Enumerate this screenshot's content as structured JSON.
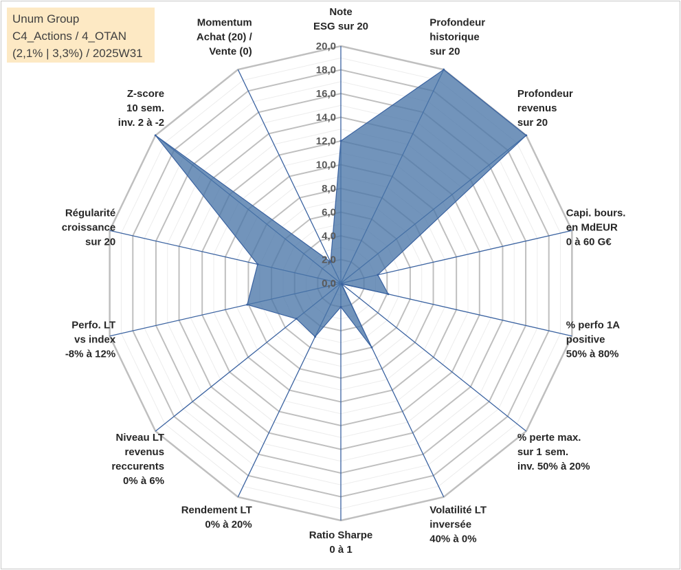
{
  "info": {
    "line1": "Unum Group",
    "line2": "C4_Actions / 4_OTAN",
    "line3": "(2,1% | 3,3%) / 2025W31"
  },
  "chart_data": {
    "type": "radar",
    "rmin": 0,
    "rmax": 20,
    "ticks": [
      "0,0",
      "2,0",
      "4,0",
      "6,0",
      "8,0",
      "10,0",
      "12,0",
      "14,0",
      "16,0",
      "18,0",
      "20,0"
    ],
    "colors": {
      "fill": "#4a76a8",
      "stroke": "#3a62a0",
      "grid": "#bfbfbf",
      "axis": "#3a62a0"
    },
    "axes": [
      {
        "label": [
          "Note",
          "ESG sur 20"
        ],
        "value": 12.0
      },
      {
        "label": [
          "Profondeur",
          "historique",
          "sur 20"
        ],
        "value": 20.0
      },
      {
        "label": [
          "Profondeur",
          "revenus",
          "sur 20"
        ],
        "value": 20.0
      },
      {
        "label": [
          "Capi. bours.",
          "en MdEUR",
          "0 à 60 G€"
        ],
        "value": 3.2
      },
      {
        "label": [
          "% perfo 1A",
          "positive",
          "50% à 80%"
        ],
        "value": 4.1
      },
      {
        "label": [
          "% perte max.",
          "sur 1 sem.",
          "inv. 50% à 20%"
        ],
        "value": 0.1
      },
      {
        "label": [
          "Volatilité LT",
          "inversée",
          "40% à 0%"
        ],
        "value": 6.0
      },
      {
        "label": [
          "Ratio Sharpe",
          "0 à 1"
        ],
        "value": 2.0
      },
      {
        "label": [
          "Rendement LT",
          "0% à 20%"
        ],
        "value": 5.0
      },
      {
        "label": [
          "Niveau LT",
          "revenus",
          "reccurents",
          "0% à 6%"
        ],
        "value": 4.8
      },
      {
        "label": [
          "Perfo. LT",
          "vs index",
          "-8% à 12%"
        ],
        "value": 8.1
      },
      {
        "label": [
          "Régularité",
          "croissance",
          "sur 20"
        ],
        "value": 7.2
      },
      {
        "label": [
          "Z-score",
          "10 sem.",
          "inv. 2 à -2"
        ],
        "value": 20.0
      },
      {
        "label": [
          "Momentum",
          "Achat (20) /",
          "Vente (0)"
        ],
        "value": 2.0
      }
    ]
  }
}
